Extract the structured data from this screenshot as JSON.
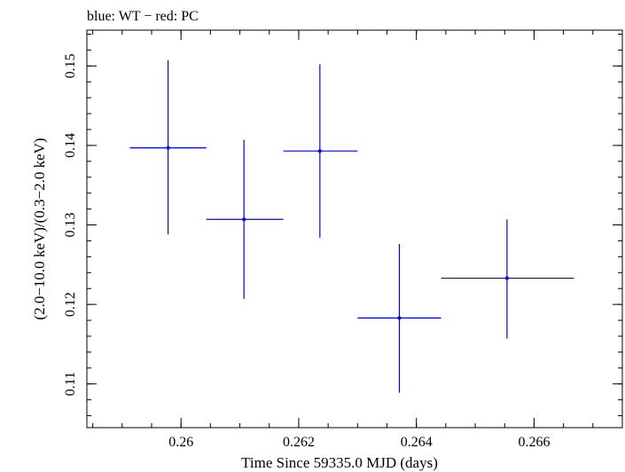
{
  "chart_data": {
    "type": "scatter",
    "title": "blue: WT − red: PC",
    "xlabel": "Time Since 59335.0 MJD (days)",
    "ylabel": "(2.0−10.0 keV)/(0.3−2.0 keV)",
    "xlim": [
      0.2584,
      0.2675
    ],
    "ylim": [
      0.1045,
      0.1545
    ],
    "xticks": [
      {
        "v": 0.26,
        "label": "0.26"
      },
      {
        "v": 0.262,
        "label": "0.262"
      },
      {
        "v": 0.264,
        "label": "0.264"
      },
      {
        "v": 0.266,
        "label": "0.266"
      }
    ],
    "yticks": [
      {
        "v": 0.11,
        "label": "0.11"
      },
      {
        "v": 0.12,
        "label": "0.12"
      },
      {
        "v": 0.13,
        "label": "0.13"
      },
      {
        "v": 0.14,
        "label": "0.14"
      },
      {
        "v": 0.15,
        "label": "0.15"
      }
    ],
    "grid": false,
    "series": [
      {
        "color": "#0000ff",
        "points": [
          {
            "x": 0.25978,
            "y": 0.1397,
            "xlo": 0.25913,
            "xhi": 0.26043,
            "ylo": 0.1288,
            "yhi": 0.1507
          },
          {
            "x": 0.26107,
            "y": 0.1307,
            "xlo": 0.26043,
            "xhi": 0.26174,
            "ylo": 0.1207,
            "yhi": 0.1407
          },
          {
            "x": 0.26236,
            "y": 0.1393,
            "xlo": 0.26174,
            "xhi": 0.263,
            "ylo": 0.1284,
            "yhi": 0.1502
          },
          {
            "x": 0.26371,
            "y": 0.1183,
            "xlo": 0.263,
            "xhi": 0.26442,
            "ylo": 0.1089,
            "yhi": 0.1276
          },
          {
            "x": 0.26554,
            "y": 0.1233,
            "xlo": 0.26442,
            "xhi": 0.26668,
            "ylo": 0.1157,
            "yhi": 0.1307
          }
        ]
      }
    ]
  }
}
